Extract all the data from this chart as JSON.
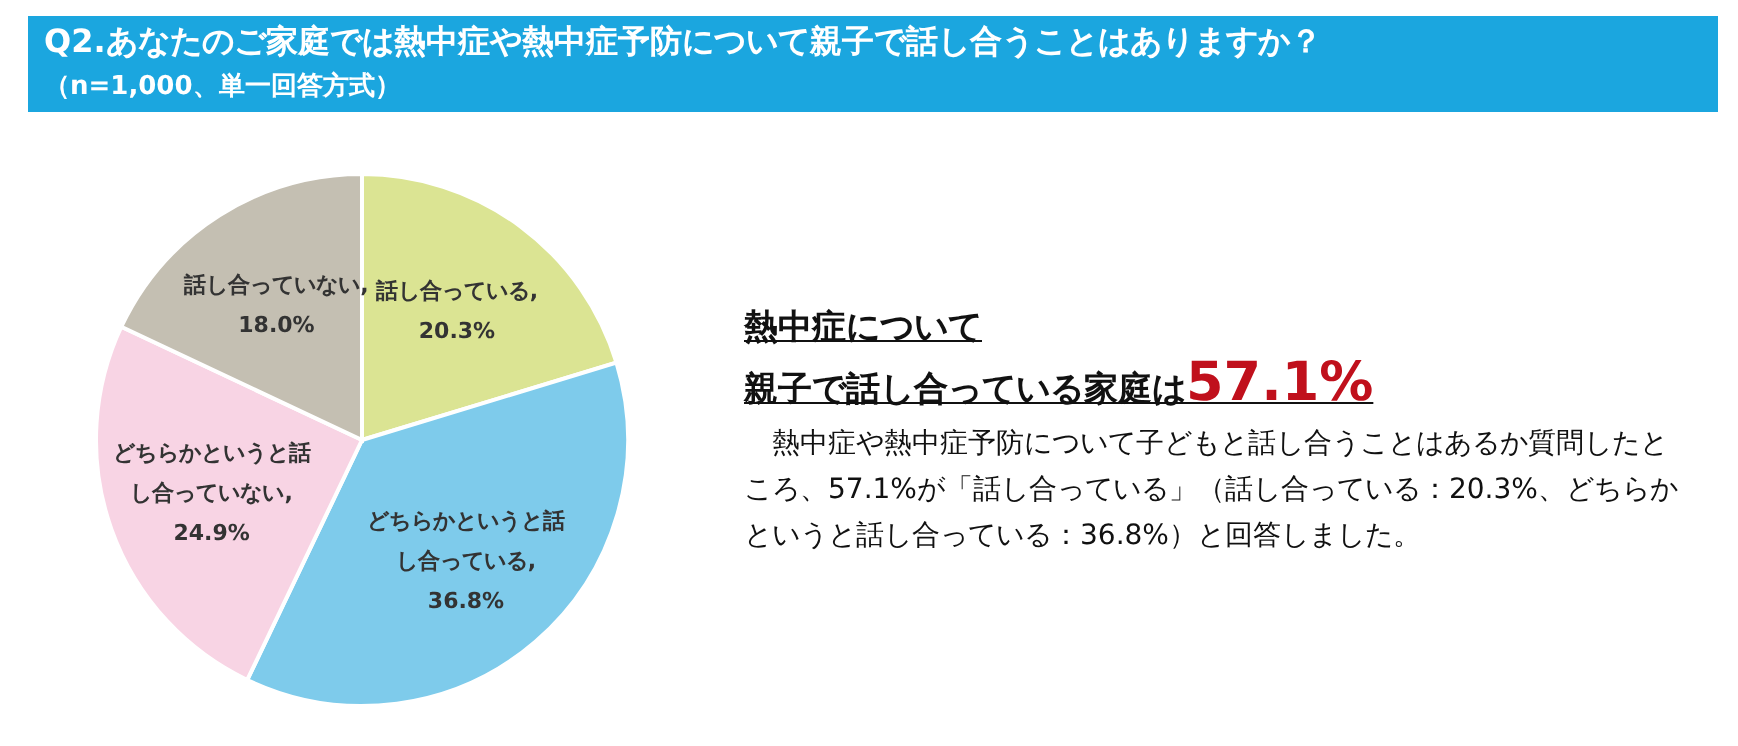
{
  "chart_data": {
    "type": "pie",
    "title": "Q2.あなたのご家庭では熱中症や熱中症予防について親子で話し合うことはありますか？",
    "subtitle": "（n=1,000、単一回答方式）",
    "categories": [
      "話し合っている",
      "どちらかというと話し合っている",
      "どちらかというと話し合っていない",
      "話し合っていない"
    ],
    "value_labels": [
      ",\n20.3%",
      ",\n36.8%",
      ",\n24.9%",
      ",\n18.0%"
    ],
    "values": [
      20.3,
      36.8,
      24.9,
      18.0
    ],
    "colors": [
      "#dbe493",
      "#7ecbeb",
      "#f8d4e4",
      "#c4bfb2"
    ],
    "annotations": [
      "熱中症について",
      "親子で話し合っている家庭は57.1%",
      "　熱中症や熱中症予防について子どもと話し合うことはあるか質問したところ、57.1%が「話し合っている」（話し合っている：20.3%、どちらかというと話し合っている：36.8%）と回答しました。"
    ]
  }
}
